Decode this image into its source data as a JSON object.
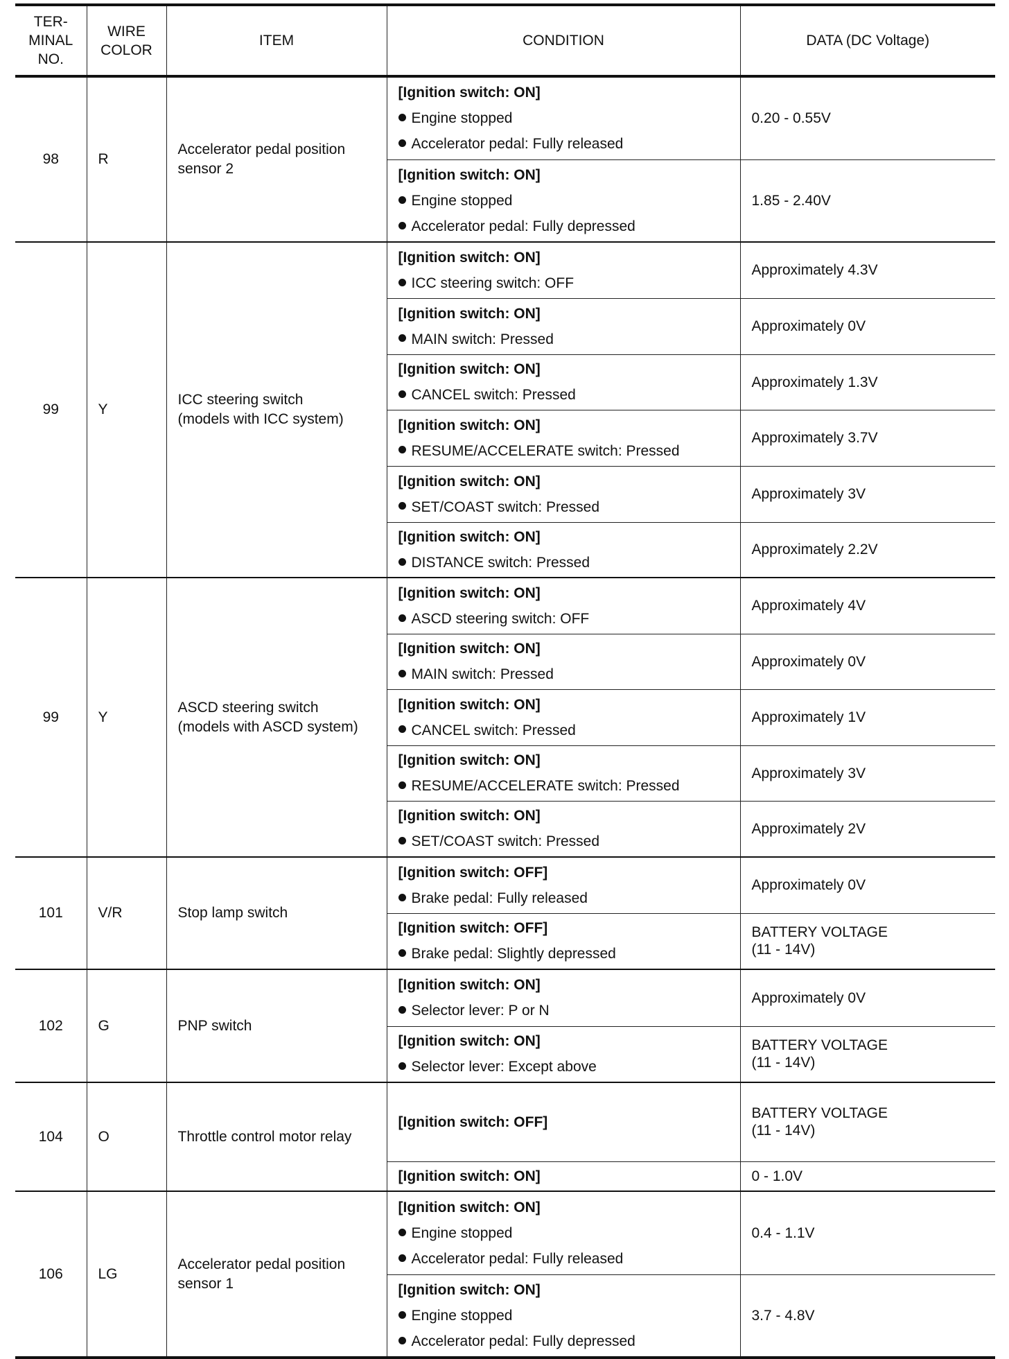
{
  "header": {
    "terminal": "TER-\nMINAL\nNO.",
    "terminal_lines": [
      "TER-",
      "MINAL",
      "NO."
    ],
    "wire_lines": [
      "WIRE",
      "COLOR"
    ],
    "item": "ITEM",
    "condition": "CONDITION",
    "data": "DATA (DC Voltage)"
  },
  "rows": [
    {
      "terminal": "98",
      "wire": "R",
      "item": [
        "Accelerator pedal position",
        "sensor 2"
      ],
      "conditions": [
        {
          "head": "[Ignition switch: ON]",
          "bullets": [
            "Engine stopped",
            "Accelerator pedal: Fully released"
          ],
          "data": [
            "0.20 - 0.55V"
          ]
        },
        {
          "head": "[Ignition switch: ON]",
          "bullets": [
            "Engine stopped",
            "Accelerator pedal: Fully depressed"
          ],
          "data": [
            "1.85 - 2.40V"
          ]
        }
      ]
    },
    {
      "terminal": "99",
      "wire": "Y",
      "item": [
        "ICC steering switch",
        "(models with ICC system)"
      ],
      "conditions": [
        {
          "head": "[Ignition switch: ON]",
          "bullets": [
            "ICC steering switch: OFF"
          ],
          "data": [
            "Approximately 4.3V"
          ]
        },
        {
          "head": "[Ignition switch: ON]",
          "bullets": [
            "MAIN switch: Pressed"
          ],
          "data": [
            "Approximately 0V"
          ]
        },
        {
          "head": "[Ignition switch: ON]",
          "bullets": [
            "CANCEL switch: Pressed"
          ],
          "data": [
            "Approximately 1.3V"
          ]
        },
        {
          "head": "[Ignition switch: ON]",
          "bullets": [
            "RESUME/ACCELERATE switch: Pressed"
          ],
          "data": [
            "Approximately 3.7V"
          ]
        },
        {
          "head": "[Ignition switch: ON]",
          "bullets": [
            "SET/COAST switch: Pressed"
          ],
          "data": [
            "Approximately 3V"
          ]
        },
        {
          "head": "[Ignition switch: ON]",
          "bullets": [
            "DISTANCE switch: Pressed"
          ],
          "data": [
            "Approximately 2.2V"
          ]
        }
      ]
    },
    {
      "terminal": "99",
      "wire": "Y",
      "item": [
        "ASCD steering switch",
        "(models with ASCD system)"
      ],
      "conditions": [
        {
          "head": "[Ignition switch: ON]",
          "bullets": [
            "ASCD steering switch: OFF"
          ],
          "data": [
            "Approximately 4V"
          ]
        },
        {
          "head": "[Ignition switch: ON]",
          "bullets": [
            "MAIN switch: Pressed"
          ],
          "data": [
            "Approximately 0V"
          ]
        },
        {
          "head": "[Ignition switch: ON]",
          "bullets": [
            "CANCEL switch: Pressed"
          ],
          "data": [
            "Approximately 1V"
          ]
        },
        {
          "head": "[Ignition switch: ON]",
          "bullets": [
            "RESUME/ACCELERATE switch: Pressed"
          ],
          "data": [
            "Approximately 3V"
          ]
        },
        {
          "head": "[Ignition switch: ON]",
          "bullets": [
            "SET/COAST switch: Pressed"
          ],
          "data": [
            "Approximately 2V"
          ]
        }
      ]
    },
    {
      "terminal": "101",
      "wire": "V/R",
      "item": [
        "Stop lamp switch"
      ],
      "conditions": [
        {
          "head": "[Ignition switch: OFF]",
          "bullets": [
            "Brake pedal: Fully released"
          ],
          "data": [
            "Approximately 0V"
          ]
        },
        {
          "head": "[Ignition switch: OFF]",
          "bullets": [
            "Brake pedal: Slightly depressed"
          ],
          "data": [
            "BATTERY VOLTAGE",
            "(11 - 14V)"
          ]
        }
      ]
    },
    {
      "terminal": "102",
      "wire": "G",
      "item": [
        "PNP switch"
      ],
      "conditions": [
        {
          "head": "[Ignition switch: ON]",
          "bullets": [
            "Selector lever: P or N"
          ],
          "data": [
            "Approximately 0V"
          ]
        },
        {
          "head": "[Ignition switch: ON]",
          "bullets": [
            "Selector lever: Except above"
          ],
          "data": [
            "BATTERY VOLTAGE",
            "(11 - 14V)"
          ]
        }
      ]
    },
    {
      "terminal": "104",
      "wire": "O",
      "item": [
        "Throttle control motor relay"
      ],
      "conditions": [
        {
          "head": "[Ignition switch: OFF]",
          "bullets": [],
          "data": [
            "BATTERY VOLTAGE",
            "(11 - 14V)"
          ]
        },
        {
          "head": "[Ignition switch: ON]",
          "bullets": [],
          "data": [
            "0 - 1.0V"
          ]
        }
      ]
    },
    {
      "terminal": "106",
      "wire": "LG",
      "item": [
        "Accelerator pedal position",
        "sensor 1"
      ],
      "conditions": [
        {
          "head": "[Ignition switch: ON]",
          "bullets": [
            "Engine stopped",
            "Accelerator pedal: Fully released"
          ],
          "data": [
            "0.4 - 1.1V"
          ]
        },
        {
          "head": "[Ignition switch: ON]",
          "bullets": [
            "Engine stopped",
            "Accelerator pedal: Fully depressed"
          ],
          "data": [
            "3.7 - 4.8V"
          ]
        }
      ]
    }
  ]
}
